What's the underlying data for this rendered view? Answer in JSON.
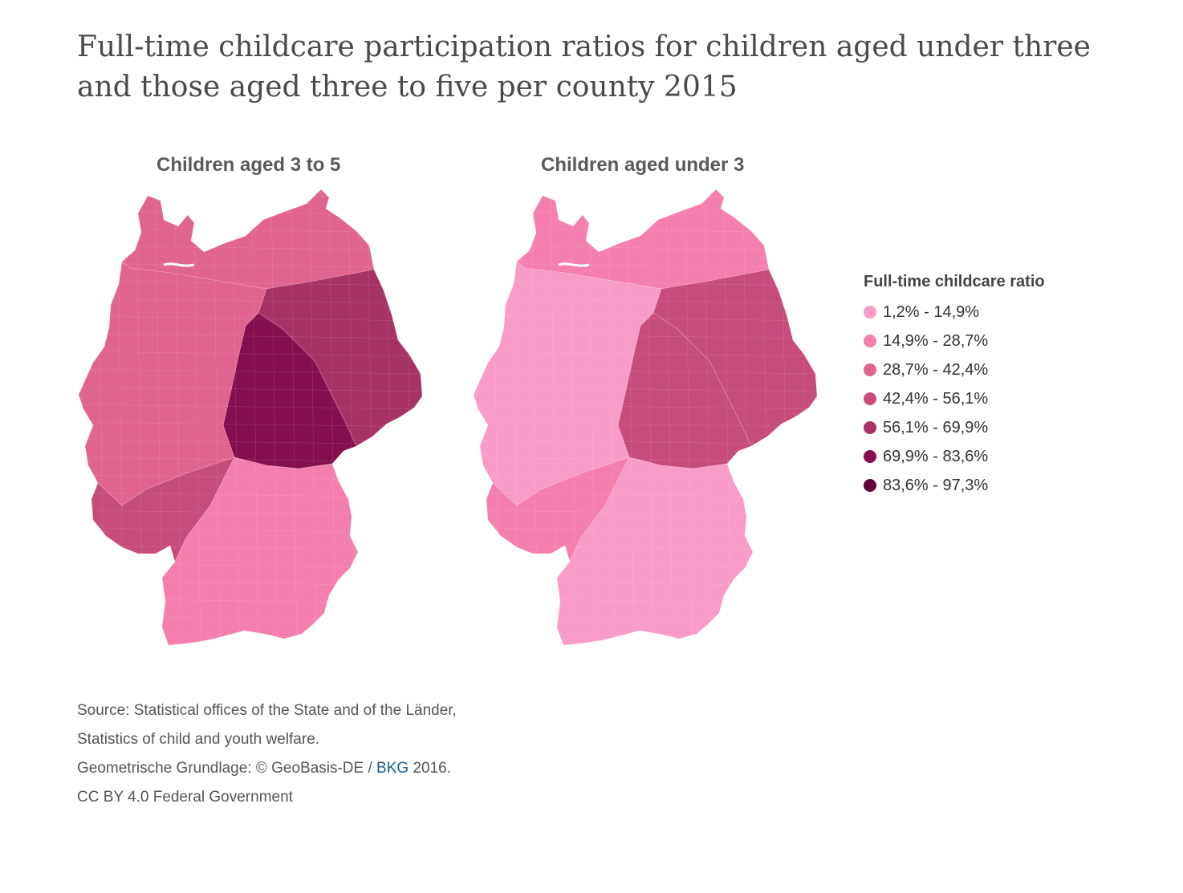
{
  "title": "Full-time childcare participation ratios for children aged under three and those aged three to five per county 2015",
  "maps": {
    "left": {
      "title": "Children aged 3 to 5"
    },
    "right": {
      "title": "Children aged under 3"
    }
  },
  "legend": {
    "title": "Full-time childcare ratio",
    "items": [
      {
        "label": "1,2% - 14,9%",
        "color": "#f99bc8"
      },
      {
        "label": "14,9% - 28,7%",
        "color": "#f47fae"
      },
      {
        "label": "28,7% - 42,4%",
        "color": "#e0648f"
      },
      {
        "label": "42,4% - 56,1%",
        "color": "#c64c7c"
      },
      {
        "label": "56,1% - 69,9%",
        "color": "#a73265"
      },
      {
        "label": "69,9% - 83,6%",
        "color": "#850f4e"
      },
      {
        "label": "83,6% - 97,3%",
        "color": "#63003a"
      }
    ]
  },
  "footer": {
    "source_1": "Source: Statistical offices of the State and of the Länder,",
    "source_2": "Statistics of child and youth welfare.",
    "geo_prefix": "Geometrische Grundlage: © GeoBasis-DE / ",
    "geo_link": "BKG",
    "geo_suffix": " 2016.",
    "license": "CC BY 4.0 Federal Government"
  },
  "regions": {
    "left": {
      "base": 0,
      "north": 2,
      "west": 2,
      "east": 4,
      "center_east": 5,
      "south_west": 3,
      "south": 1
    },
    "right": {
      "base": 0,
      "north": 1,
      "west": 0,
      "east": 3,
      "center_east": 3,
      "south_west": 1,
      "south": 0
    }
  }
}
